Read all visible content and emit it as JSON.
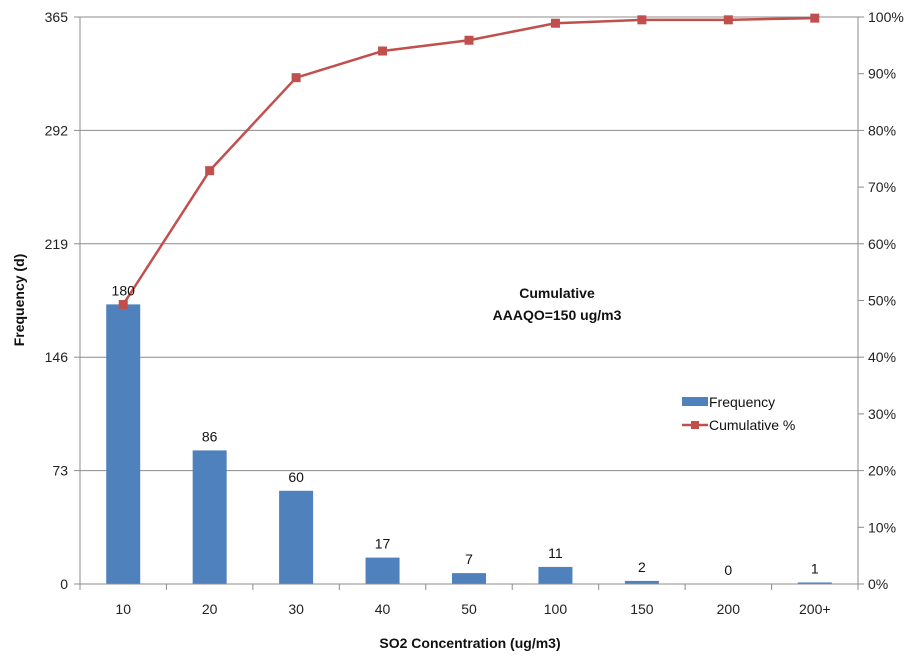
{
  "chart_data": {
    "type": "bar",
    "categories": [
      "10",
      "20",
      "30",
      "40",
      "50",
      "100",
      "150",
      "200",
      "200+"
    ],
    "series": [
      {
        "name": "Frequency",
        "type": "bar",
        "axis": "left",
        "values": [
          180,
          86,
          60,
          17,
          7,
          11,
          2,
          0,
          1
        ],
        "data_labels": [
          "180",
          "86",
          "60",
          "17",
          "7",
          "11",
          "2",
          "0",
          "1"
        ],
        "color": "#4F81BD"
      },
      {
        "name": "Cumulative %",
        "type": "line",
        "axis": "right",
        "values": [
          49.3,
          72.9,
          89.3,
          94.0,
          95.9,
          98.9,
          99.5,
          99.5,
          99.8
        ],
        "color": "#C0504D",
        "marker": "square"
      }
    ],
    "xlabel": "SO2 Concentration (ug/m3)",
    "ylabel": "Frequency (d)",
    "ylim": [
      0,
      365
    ],
    "y_ticks": [
      "0",
      "73",
      "146",
      "219",
      "292",
      "365"
    ],
    "y2lim": [
      0,
      100
    ],
    "y2_ticks": [
      "0%",
      "10%",
      "20%",
      "30%",
      "40%",
      "50%",
      "60%",
      "70%",
      "80%",
      "90%",
      "100%"
    ],
    "annotation": [
      "Cumulative",
      "AAAQO=150 ug/m3"
    ],
    "legend_position": "right",
    "grid": "horizontal"
  }
}
